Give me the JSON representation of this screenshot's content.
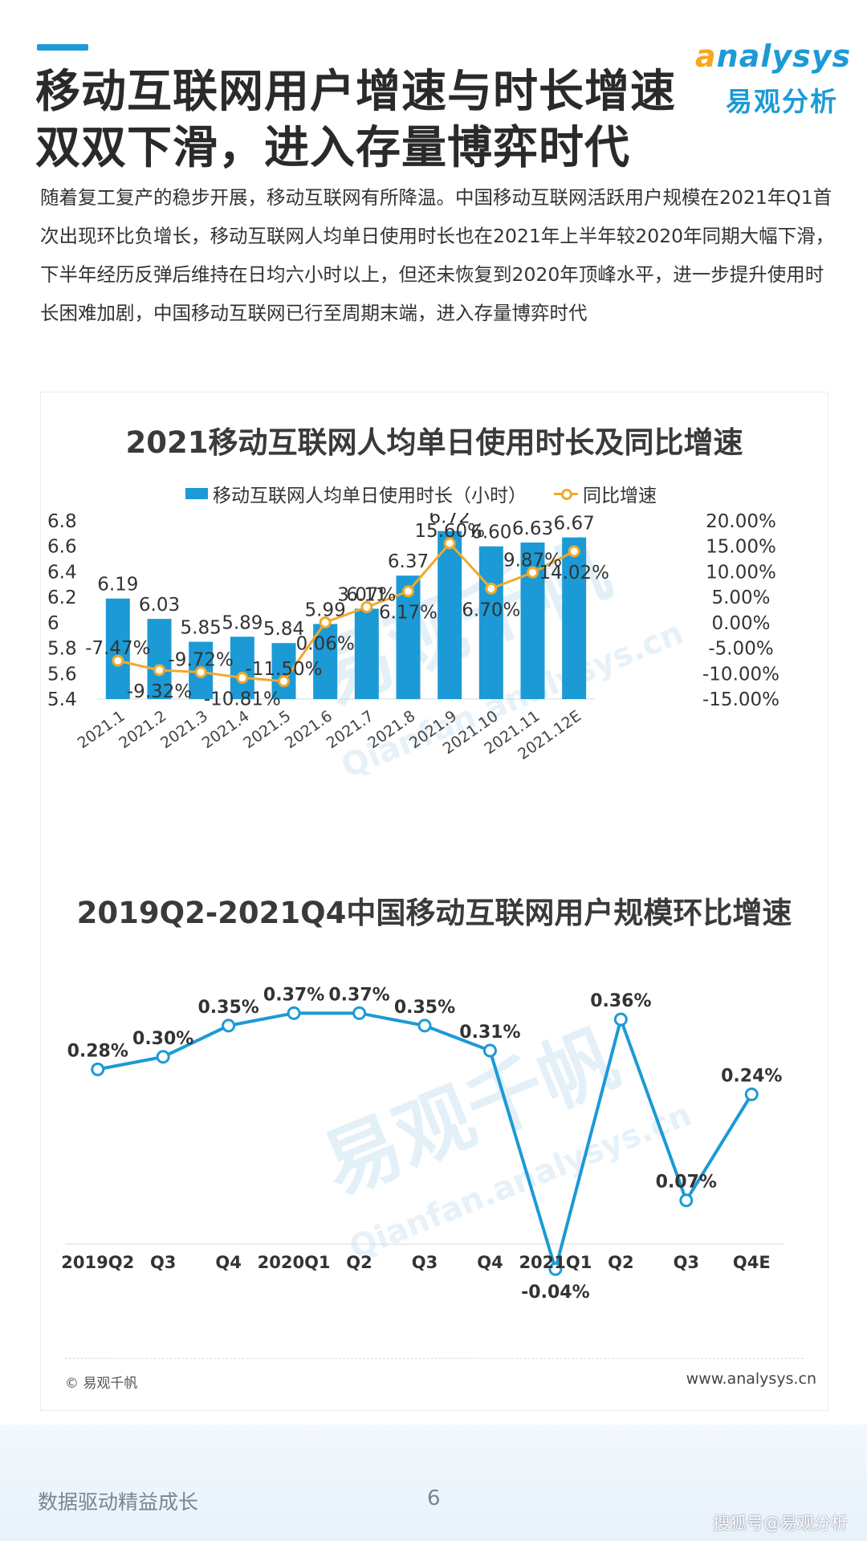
{
  "header": {
    "title": "移动互联网用户增速与时长增速双双下滑，进入存量博弈时代",
    "logo_word": "nalysys",
    "logo_sub": "易观分析"
  },
  "intro": "随着复工复产的稳步开展，移动互联网有所降温。中国移动互联网活跃用户规模在2021年Q1首次出现环比负增长，移动互联网人均单日使用时长也在2021年上半年较2020年同期大幅下滑，下半年经历反弹后维持在日均六小时以上，但还未恢复到2020年顶峰水平，进一步提升使用时长困难加剧，中国移动互联网已行至周期末端，进入存量博弈时代",
  "watermark": {
    "top": "易观千帆",
    "top_sub": "Qianfan.analysys.cn",
    "bottom": "易观千帆",
    "bottom_sub": "Qianfan.analysys.cn"
  },
  "chart_data": [
    {
      "type": "bar",
      "title": "2021移动互联网人均单日使用时长及同比增速",
      "categories": [
        "2021.1",
        "2021.2",
        "2021.3",
        "2021.4",
        "2021.5",
        "2021.6",
        "2021.7",
        "2021.8",
        "2021.9",
        "2021.10",
        "2021.11",
        "2021.12E"
      ],
      "series": [
        {
          "name": "移动互联网人均单日使用时长（小时）",
          "type": "bar",
          "axis": "left",
          "color": "#1c9ad6",
          "values": [
            6.19,
            6.03,
            5.85,
            5.89,
            5.84,
            5.99,
            6.11,
            6.37,
            6.72,
            6.6,
            6.63,
            6.67
          ],
          "labels": [
            "6.19",
            "6.03",
            "5.85",
            "5.89",
            "5.84",
            "5.99",
            "6.11",
            "6.37",
            "6.72",
            "6.60",
            "6.63",
            "6.67"
          ]
        },
        {
          "name": "同比增速",
          "type": "line",
          "axis": "right",
          "color": "#f0a92d",
          "values": [
            -7.47,
            -9.32,
            -9.72,
            -10.81,
            -11.5,
            0.06,
            3.07,
            6.17,
            15.6,
            6.7,
            9.87,
            14.02
          ],
          "labels": [
            "-7.47%",
            "-9.32%",
            "-9.72%",
            "-10.81%",
            "-11.50%",
            "0.06%",
            "3.07%",
            "6.17%",
            "15.60%",
            "6.70%",
            "9.87%",
            "14.02%"
          ]
        }
      ],
      "ylim_left": [
        5.4,
        6.8
      ],
      "yticks_left": [
        "6.8",
        "6.6",
        "6.4",
        "6.2",
        "6",
        "5.8",
        "5.6",
        "5.4"
      ],
      "ylim_right": [
        -15,
        20
      ],
      "yticks_right": [
        "20.00%",
        "15.00%",
        "10.00%",
        "5.00%",
        "0.00%",
        "-5.00%",
        "-10.00%",
        "-15.00%"
      ],
      "legend_position": "top",
      "grid": false
    },
    {
      "type": "line",
      "title": "2019Q2-2021Q4中国移动互联网用户规模环比增速",
      "categories": [
        "2019Q2",
        "Q3",
        "Q4",
        "2020Q1",
        "Q2",
        "Q3",
        "Q4",
        "2021Q1",
        "Q2",
        "Q3",
        "Q4E"
      ],
      "series": [
        {
          "color": "#1c9ad6",
          "values": [
            0.28,
            0.3,
            0.35,
            0.37,
            0.37,
            0.35,
            0.31,
            -0.04,
            0.36,
            0.07,
            0.24
          ],
          "labels": [
            "0.28%",
            "0.30%",
            "0.35%",
            "0.37%",
            "0.37%",
            "0.35%",
            "0.31%",
            "-0.04%",
            "0.36%",
            "0.07%",
            "0.24%"
          ]
        }
      ],
      "ylim": [
        -0.05,
        0.4
      ],
      "grid": false
    }
  ],
  "footer": {
    "credit": "© 易观千帆",
    "site": "www.analysys.cn",
    "slogan": "数据驱动精益成长",
    "page": "6",
    "source": "搜狐号@易观分析"
  }
}
